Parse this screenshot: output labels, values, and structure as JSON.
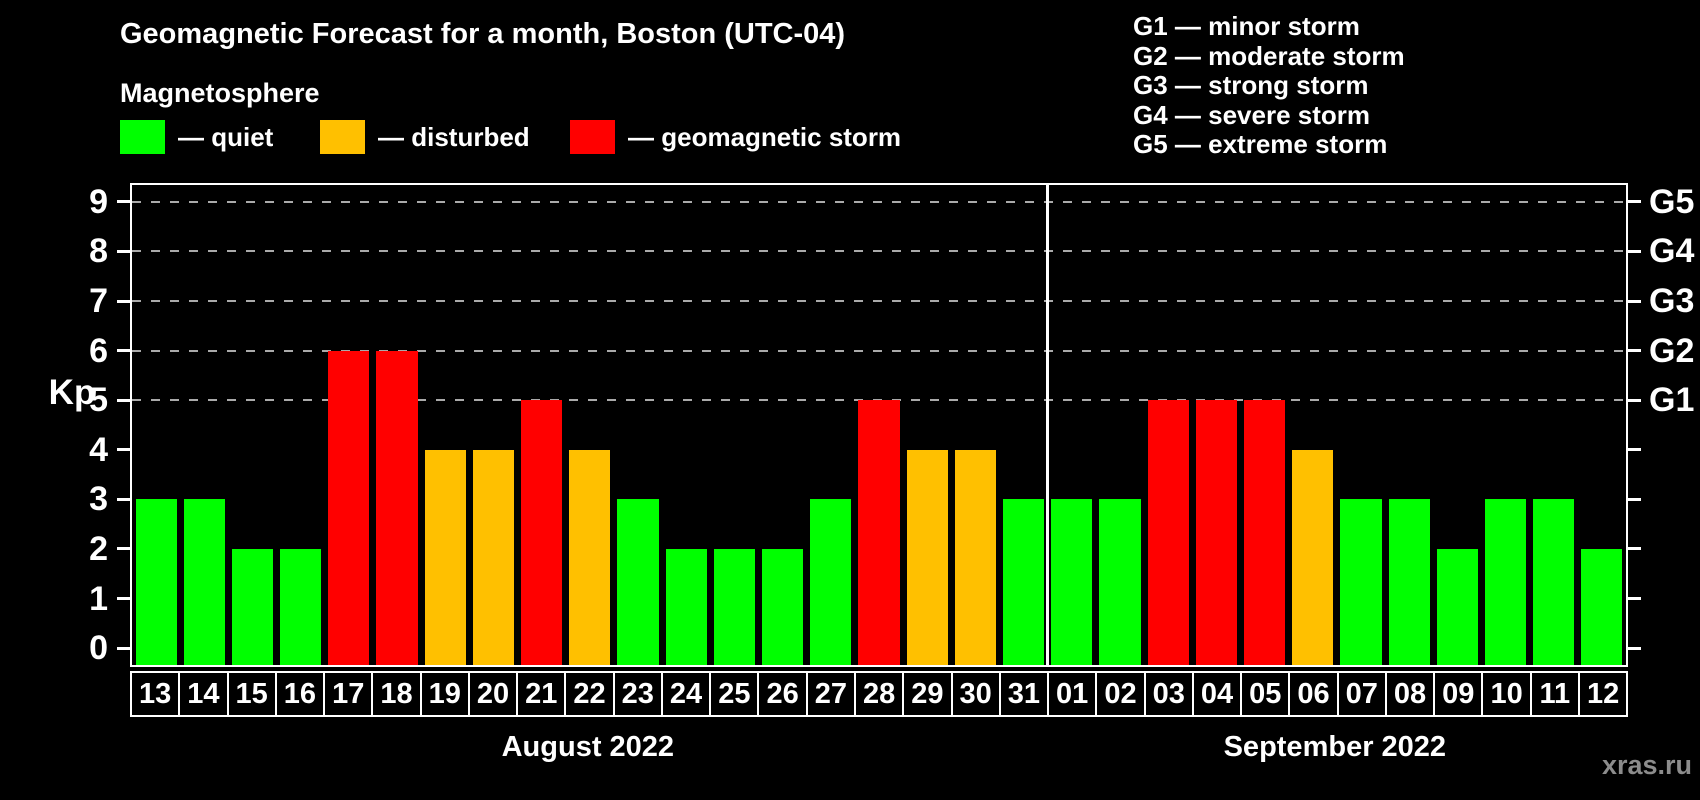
{
  "header": {
    "title": "Geomagnetic Forecast for a month, Boston (UTC-04)",
    "legend_title": "Magnetosphere"
  },
  "g_scale_legend": [
    "G1 — minor storm",
    "G2 — moderate storm",
    "G3 — strong storm",
    "G4 — severe storm",
    "G5 — extreme storm"
  ],
  "watermark": "xras.ru",
  "chart_data": {
    "type": "bar",
    "title": "Geomagnetic Forecast for a month, Boston (UTC-04)",
    "ylabel": "Kp",
    "ylim": [
      0,
      9
    ],
    "y_ticks": [
      0,
      1,
      2,
      3,
      4,
      5,
      6,
      7,
      8,
      9
    ],
    "gridlines_at": [
      5,
      6,
      7,
      8,
      9
    ],
    "grid": "dashed horizontal lines at storm levels only",
    "legend_position": "top-left",
    "status_colors": {
      "quiet": "#00ff00",
      "disturbed": "#ffc000",
      "storm": "#ff0000"
    },
    "series_legend": [
      {
        "label": "— quiet",
        "status": "quiet"
      },
      {
        "label": "— disturbed",
        "status": "disturbed"
      },
      {
        "label": "— geomagnetic storm",
        "status": "storm"
      }
    ],
    "right_axis": {
      "ticks": [
        0,
        1,
        2,
        3,
        4,
        5,
        6,
        7,
        8,
        9
      ],
      "labels": {
        "5": "G1",
        "6": "G2",
        "7": "G3",
        "8": "G4",
        "9": "G5"
      }
    },
    "months": [
      {
        "label": "August 2022",
        "start_index": 0,
        "days": 19
      },
      {
        "label": "September 2022",
        "start_index": 19,
        "days": 12
      }
    ],
    "bars": [
      {
        "day": "13",
        "kp": 3,
        "status": "quiet"
      },
      {
        "day": "14",
        "kp": 3,
        "status": "quiet"
      },
      {
        "day": "15",
        "kp": 2,
        "status": "quiet"
      },
      {
        "day": "16",
        "kp": 2,
        "status": "quiet"
      },
      {
        "day": "17",
        "kp": 6,
        "status": "storm"
      },
      {
        "day": "18",
        "kp": 6,
        "status": "storm"
      },
      {
        "day": "19",
        "kp": 4,
        "status": "disturbed"
      },
      {
        "day": "20",
        "kp": 4,
        "status": "disturbed"
      },
      {
        "day": "21",
        "kp": 5,
        "status": "storm"
      },
      {
        "day": "22",
        "kp": 4,
        "status": "disturbed"
      },
      {
        "day": "23",
        "kp": 3,
        "status": "quiet"
      },
      {
        "day": "24",
        "kp": 2,
        "status": "quiet"
      },
      {
        "day": "25",
        "kp": 2,
        "status": "quiet"
      },
      {
        "day": "26",
        "kp": 2,
        "status": "quiet"
      },
      {
        "day": "27",
        "kp": 3,
        "status": "quiet"
      },
      {
        "day": "28",
        "kp": 5,
        "status": "storm"
      },
      {
        "day": "29",
        "kp": 4,
        "status": "disturbed"
      },
      {
        "day": "30",
        "kp": 4,
        "status": "disturbed"
      },
      {
        "day": "31",
        "kp": 3,
        "status": "quiet"
      },
      {
        "day": "01",
        "kp": 3,
        "status": "quiet"
      },
      {
        "day": "02",
        "kp": 3,
        "status": "quiet"
      },
      {
        "day": "03",
        "kp": 5,
        "status": "storm"
      },
      {
        "day": "04",
        "kp": 5,
        "status": "storm"
      },
      {
        "day": "05",
        "kp": 5,
        "status": "storm"
      },
      {
        "day": "06",
        "kp": 4,
        "status": "disturbed"
      },
      {
        "day": "07",
        "kp": 3,
        "status": "quiet"
      },
      {
        "day": "08",
        "kp": 3,
        "status": "quiet"
      },
      {
        "day": "09",
        "kp": 2,
        "status": "quiet"
      },
      {
        "day": "10",
        "kp": 3,
        "status": "quiet"
      },
      {
        "day": "11",
        "kp": 3,
        "status": "quiet"
      },
      {
        "day": "12",
        "kp": 2,
        "status": "quiet"
      }
    ]
  }
}
